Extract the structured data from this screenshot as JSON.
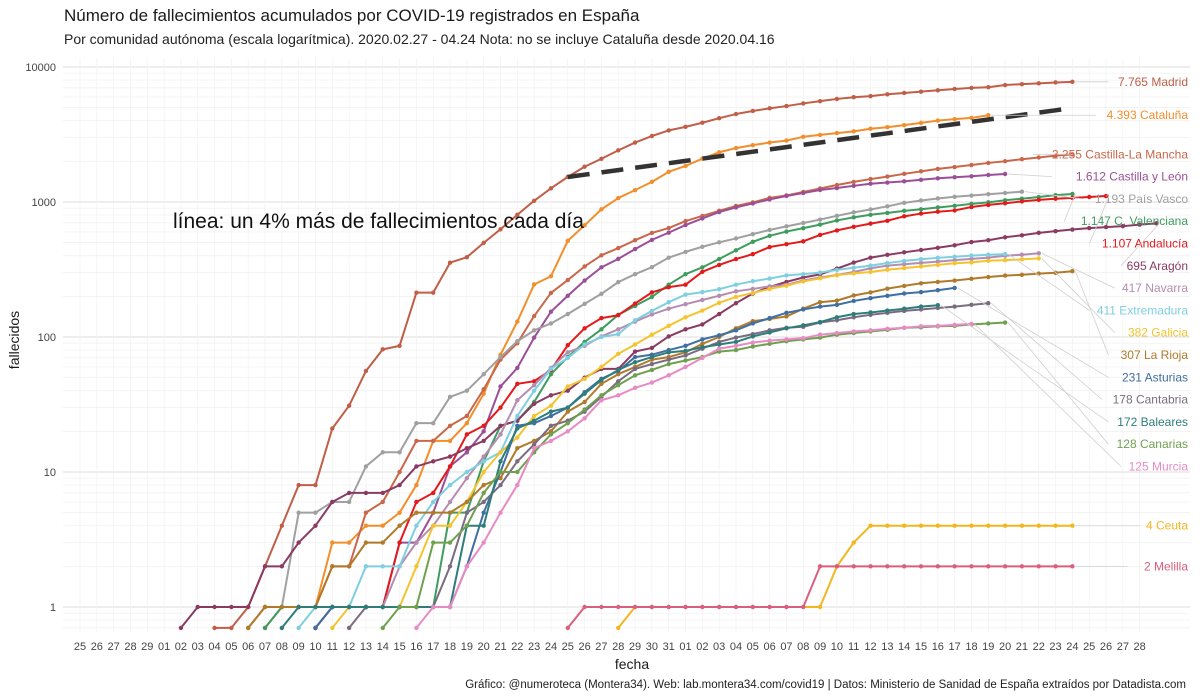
{
  "header": {
    "title": "Número de fallecimientos acumulados por COVID-19 registrados en España",
    "subtitle": "Por comunidad autónoma (escala logarítmica). 2020.02.27 - 04.24 Nota: no se incluye Cataluña desde 2020.04.16"
  },
  "footer": {
    "caption": "Gráfico: @numeroteca (Montera34). Web: lab.montera34.com/covid19 | Datos: Ministerio de Sanidad de España extraídos por Datadista.com"
  },
  "chart_data": {
    "type": "line",
    "title": "Número de fallecimientos acumulados por COVID-19 registrados en España",
    "subtitle": "Por comunidad autónoma (escala logarítmica). 2020.02.27 - 04.24 Nota: no se incluye Cataluña desde 2020.04.16",
    "xlabel": "fecha",
    "ylabel": "fallecidos",
    "y_scale": "log",
    "ylim": [
      0.7,
      10000
    ],
    "y_ticks": [
      1,
      10,
      100,
      1000
    ],
    "y_tick_labels": [
      "1",
      "10",
      "100",
      "1000"
    ],
    "y_top_label": "10000",
    "x_tick_labels": [
      "25",
      "26",
      "27",
      "28",
      "29",
      "01",
      "02",
      "03",
      "04",
      "05",
      "06",
      "07",
      "08",
      "09",
      "10",
      "11",
      "12",
      "13",
      "14",
      "15",
      "16",
      "17",
      "18",
      "19",
      "20",
      "21",
      "22",
      "23",
      "24",
      "25",
      "26",
      "27",
      "28",
      "29",
      "30",
      "31",
      "01",
      "02",
      "03",
      "04",
      "05",
      "06",
      "07",
      "08",
      "09",
      "10",
      "11",
      "12",
      "13",
      "14",
      "15",
      "16",
      "17",
      "18",
      "19",
      "20",
      "21",
      "22",
      "23",
      "24",
      "25",
      "26",
      "27",
      "28"
    ],
    "x_start_date": "2020-02-25",
    "grid": true,
    "legend": "labels at line ends (right)",
    "annotation": {
      "text": "línea: un 4% más de fallecimientos cada día",
      "reference_line": {
        "start_index": 29,
        "end_index": 59,
        "start_value": 1532,
        "daily_growth": 0.04,
        "style": "dashed",
        "color": "#333333"
      }
    },
    "series": [
      {
        "name": "Madrid",
        "label": "7.765 Madrid",
        "color": "#C05E47",
        "start": 8,
        "values": [
          0.7,
          0.7,
          1,
          2,
          4,
          8,
          8,
          21,
          31,
          56,
          81,
          86,
          213,
          213,
          355,
          390,
          498,
          628,
          804,
          1021,
          1263,
          1535,
          1825,
          2090,
          2412,
          2757,
          3082,
          3392,
          3603,
          3865,
          4175,
          4483,
          4723,
          4941,
          5136,
          5371,
          5586,
          5800,
          5972,
          6084,
          6278,
          6423,
          6568,
          6724,
          6877,
          7000,
          7084,
          7351,
          7460,
          7565,
          7684,
          7765
        ]
      },
      {
        "name": "Cataluña",
        "label": "4.393 Cataluña",
        "color": "#F28E2B",
        "start": 10,
        "values": [
          0.7,
          1,
          1,
          1,
          1,
          3,
          3,
          4,
          4,
          5,
          8,
          17,
          17,
          23,
          38,
          74,
          130,
          245,
          282,
          516,
          672,
          882,
          1070,
          1224,
          1410,
          1672,
          1849,
          2093,
          2335,
          2508,
          2637,
          2757,
          2850,
          3041,
          3141,
          3239,
          3338,
          3490,
          3581,
          3708,
          3855,
          4011,
          4108,
          4195,
          4393
        ]
      },
      {
        "name": "Castilla-La Mancha",
        "label": "2.255 Castilla-La Mancha",
        "color": "#C9674A",
        "start": 11,
        "values": [
          0.7,
          1,
          1,
          1,
          2,
          2,
          5,
          6,
          10,
          17,
          17,
          22,
          26,
          41,
          68,
          90,
          143,
          212,
          264,
          333,
          403,
          456,
          521,
          590,
          641,
          722,
          789,
          860,
          935,
          993,
          1073,
          1118,
          1186,
          1260,
          1336,
          1409,
          1479,
          1542,
          1617,
          1687,
          1758,
          1815,
          1879,
          1947,
          2004,
          2075,
          2137,
          2205,
          2255
        ]
      },
      {
        "name": "Castilla y León",
        "label": "1.612 Castilla y León",
        "color": "#9B4F96",
        "start": 14,
        "values": [
          0.7,
          1,
          1,
          1,
          1,
          3,
          3,
          5,
          11,
          14,
          20,
          43,
          59,
          99,
          154,
          202,
          262,
          328,
          379,
          448,
          524,
          593,
          675,
          755,
          842,
          911,
          976,
          1045,
          1108,
          1166,
          1227,
          1269,
          1318,
          1366,
          1394,
          1422,
          1461,
          1498,
          1526,
          1550,
          1585,
          1612
        ]
      },
      {
        "name": "País Vasco",
        "label": "1.193 País Vasco",
        "color": "#A0A0A0",
        "start": 10,
        "values": [
          0.7,
          1,
          1,
          5,
          5,
          6,
          6,
          11,
          14,
          14,
          23,
          23,
          36,
          40,
          53,
          71,
          93,
          112,
          126,
          148,
          176,
          209,
          255,
          292,
          329,
          387,
          427,
          466,
          503,
          537,
          578,
          621,
          660,
          699,
          741,
          790,
          838,
          880,
          929,
          986,
          1026,
          1062,
          1093,
          1117,
          1142,
          1166,
          1193
        ]
      },
      {
        "name": "C. Valenciana",
        "label": "1.147 C. Valenciana",
        "color": "#3E9C5E",
        "start": 11,
        "values": [
          0.7,
          1,
          1,
          1,
          1,
          1,
          1,
          1,
          1,
          1,
          1,
          5,
          5,
          12,
          22,
          24,
          33,
          53,
          71,
          92,
          114,
          146,
          170,
          198,
          244,
          292,
          328,
          378,
          439,
          507,
          562,
          604,
          640,
          680,
          730,
          770,
          804,
          830,
          860,
          883,
          911,
          937,
          969,
          994,
          1030,
          1058,
          1088,
          1124,
          1147
        ]
      },
      {
        "name": "Andalucía",
        "label": "1.107 Andalucía",
        "color": "#E31A1C",
        "start": 14,
        "values": [
          0.7,
          1,
          1,
          1,
          1,
          3,
          6,
          7,
          11,
          19,
          22,
          30,
          45,
          47,
          57,
          87,
          116,
          138,
          145,
          177,
          214,
          234,
          244,
          304,
          342,
          378,
          411,
          464,
          487,
          511,
          570,
          616,
          655,
          692,
          726,
          783,
          821,
          847,
          866,
          918,
          952,
          979,
          1010,
          1037,
          1057,
          1073,
          1089,
          1107
        ]
      },
      {
        "name": "Aragón",
        "label": "695 Aragón",
        "color": "#8B3A62",
        "start": 6,
        "values": [
          0.7,
          1,
          1,
          1,
          1,
          2,
          2,
          3,
          4,
          6,
          7,
          7,
          7,
          8,
          11,
          12,
          13,
          15,
          17,
          22,
          24,
          32,
          37,
          40,
          50,
          58,
          58,
          78,
          83,
          101,
          114,
          124,
          148,
          178,
          210,
          235,
          256,
          276,
          291,
          321,
          356,
          387,
          406,
          424,
          441,
          458,
          478,
          505,
          521,
          548,
          567,
          591,
          608,
          625,
          641,
          652,
          662,
          680,
          695
        ]
      },
      {
        "name": "Navarra",
        "label": "417 Navarra",
        "color": "#B58DB0",
        "start": 14,
        "values": [
          0.7,
          1,
          1,
          1,
          1,
          2,
          3,
          4,
          6,
          9,
          13,
          19,
          34,
          44,
          59,
          77,
          86,
          101,
          114,
          130,
          147,
          162,
          175,
          188,
          202,
          218,
          227,
          237,
          243,
          262,
          276,
          288,
          303,
          323,
          338,
          346,
          354,
          362,
          371,
          379,
          387,
          400,
          407,
          417
        ]
      },
      {
        "name": "Extremadura",
        "label": "411 Extremadura",
        "color": "#7ECFE0",
        "start": 13,
        "values": [
          0.7,
          1,
          1,
          1,
          2,
          2,
          2,
          4,
          6,
          8,
          10,
          12,
          14,
          26,
          40,
          58,
          70,
          88,
          100,
          105,
          133,
          156,
          181,
          206,
          215,
          226,
          244,
          259,
          271,
          286,
          292,
          300,
          314,
          326,
          338,
          353,
          366,
          377,
          386,
          393,
          401,
          407,
          411
        ]
      },
      {
        "name": "Galicia",
        "label": "382 Galicia",
        "color": "#F4C430",
        "start": 15,
        "values": [
          0.7,
          1,
          1,
          1,
          1,
          2,
          4,
          4,
          6,
          10,
          14,
          18,
          26,
          31,
          43,
          49,
          60,
          75,
          88,
          104,
          121,
          140,
          157,
          179,
          198,
          212,
          227,
          240,
          258,
          272,
          287,
          296,
          303,
          315,
          324,
          333,
          342,
          352,
          357,
          367,
          371,
          376,
          382
        ]
      },
      {
        "name": "La Rioja",
        "label": "307 La Rioja",
        "color": "#B07A2A",
        "start": 10,
        "values": [
          0.7,
          1,
          1,
          1,
          1,
          2,
          2,
          3,
          3,
          4,
          5,
          5,
          5,
          6,
          8,
          9,
          15,
          17,
          20,
          28,
          33,
          45,
          53,
          60,
          68,
          71,
          77,
          89,
          100,
          116,
          131,
          136,
          142,
          162,
          181,
          186,
          203,
          214,
          228,
          239,
          250,
          256,
          262,
          270,
          278,
          285,
          289,
          295,
          299,
          307
        ]
      },
      {
        "name": "Asturias",
        "label": "231 Asturias",
        "color": "#3F6FA3",
        "start": 14,
        "values": [
          0.7,
          1,
          1,
          1,
          1,
          1,
          1,
          1,
          1,
          2,
          5,
          10,
          22,
          23,
          26,
          30,
          39,
          49,
          56,
          71,
          74,
          80,
          86,
          96,
          103,
          112,
          126,
          138,
          151,
          160,
          168,
          173,
          185,
          194,
          202,
          210,
          215,
          222,
          231
        ]
      },
      {
        "name": "Cantabria",
        "label": "178 Cantabria",
        "color": "#7A6C80",
        "start": 16,
        "values": [
          0.7,
          1,
          1,
          1,
          1,
          1,
          2,
          5,
          6,
          8,
          12,
          16,
          22,
          24,
          28,
          36,
          47,
          58,
          63,
          68,
          73,
          82,
          92,
          99,
          105,
          112,
          117,
          119,
          128,
          133,
          140,
          146,
          151,
          156,
          160,
          164,
          168,
          173,
          178
        ]
      },
      {
        "name": "Baleares",
        "label": "172 Baleares",
        "color": "#2E7D7A",
        "start": 12,
        "values": [
          0.7,
          1,
          1,
          1,
          1,
          1,
          1,
          1,
          1,
          1,
          1,
          4,
          4,
          12,
          21,
          24,
          28,
          30,
          38,
          48,
          57,
          65,
          71,
          77,
          79,
          84,
          88,
          92,
          101,
          108,
          116,
          122,
          129,
          140,
          148,
          152,
          157,
          162,
          168,
          172
        ]
      },
      {
        "name": "Canarias",
        "label": "128 Canarias",
        "color": "#6FA04F",
        "start": 18,
        "values": [
          0.7,
          1,
          1,
          3,
          3,
          4,
          7,
          10,
          10,
          14,
          19,
          23,
          29,
          37,
          44,
          52,
          57,
          63,
          67,
          71,
          78,
          80,
          85,
          89,
          93,
          96,
          99,
          104,
          107,
          110,
          113,
          117,
          118,
          120,
          121,
          124,
          126,
          128
        ]
      },
      {
        "name": "Murcia",
        "label": "125 Murcia",
        "color": "#E88BC4",
        "start": 20,
        "values": [
          0.7,
          1,
          1,
          2,
          3,
          5,
          8,
          15,
          17,
          20,
          25,
          34,
          37,
          42,
          46,
          52,
          60,
          70,
          82,
          86,
          91,
          94,
          96,
          98,
          104,
          107,
          110,
          112,
          115,
          117,
          120,
          121,
          123,
          125
        ]
      },
      {
        "name": "Ceuta",
        "label": "4 Ceuta",
        "color": "#F4B620",
        "start": 32,
        "values": [
          0.7,
          1,
          1,
          1,
          1,
          1,
          1,
          1,
          1,
          1,
          1,
          1,
          1,
          2,
          3,
          4,
          4,
          4,
          4,
          4,
          4,
          4,
          4,
          4,
          4,
          4,
          4,
          4
        ]
      },
      {
        "name": "Melilla",
        "label": "2 Melilla",
        "color": "#D95F7E",
        "start": 29,
        "values": [
          0.7,
          1,
          1,
          1,
          1,
          1,
          1,
          1,
          1,
          1,
          1,
          1,
          1,
          1,
          1,
          2,
          2,
          2,
          2,
          2,
          2,
          2,
          2,
          2,
          2,
          2,
          2,
          2,
          2,
          2,
          2
        ]
      }
    ]
  }
}
